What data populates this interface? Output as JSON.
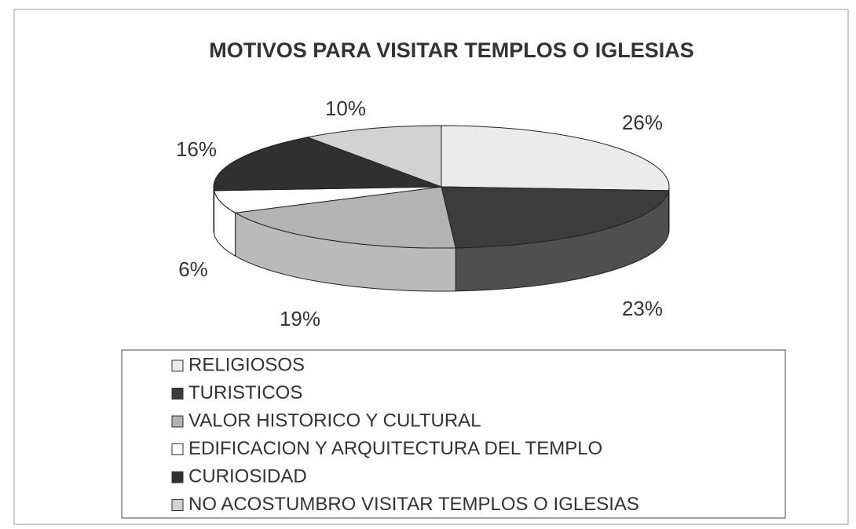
{
  "chart_data": {
    "type": "pie",
    "title": "MOTIVOS PARA VISITAR TEMPLOS O IGLESIAS",
    "categories": [
      "RELIGIOSOS",
      "TURISTICOS",
      "VALOR HISTORICO Y CULTURAL",
      "EDIFICACION Y ARQUITECTURA DEL TEMPLO",
      "CURIOSIDAD",
      "NO ACOSTUMBRO VISITAR TEMPLOS O IGLESIAS"
    ],
    "values": [
      26,
      23,
      19,
      6,
      16,
      10
    ],
    "value_labels": [
      "26%",
      "23%",
      "19%",
      "6%",
      "16%",
      "10%"
    ],
    "colors": [
      "#ebebeb",
      "#3c3c3c",
      "#b3b3b3",
      "#ffffff",
      "#303030",
      "#d2d2d2"
    ]
  }
}
